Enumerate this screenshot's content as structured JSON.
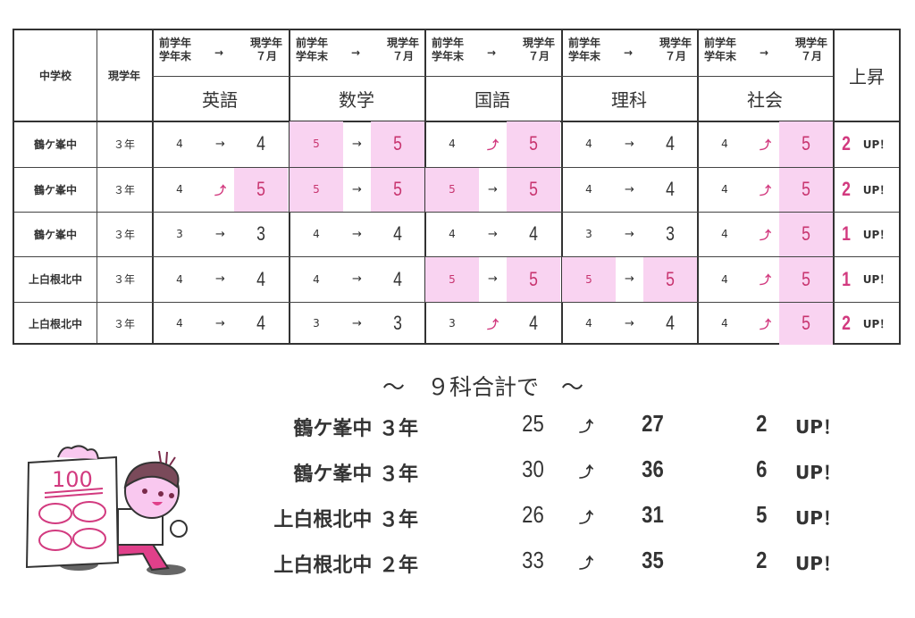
{
  "table": {
    "headers": {
      "school": "中学校",
      "grade": "現学年",
      "from_label": [
        "前学年",
        "学年末"
      ],
      "arrow": "→",
      "to_label": [
        "現学年",
        "７月"
      ],
      "increase": "上昇"
    },
    "subjects": [
      "英語",
      "数学",
      "国語",
      "理科",
      "社会"
    ],
    "rows": [
      {
        "school": "鶴ケ峯中",
        "grade": "３年",
        "scores": [
          [
            "4",
            "same",
            "4"
          ],
          [
            "5",
            "same",
            "5"
          ],
          [
            "4",
            "up",
            "5"
          ],
          [
            "4",
            "same",
            "4"
          ],
          [
            "4",
            "up",
            "5"
          ]
        ],
        "increase": "2",
        "up_label": "UP！"
      },
      {
        "school": "鶴ケ峯中",
        "grade": "３年",
        "scores": [
          [
            "4",
            "up",
            "5"
          ],
          [
            "5",
            "same",
            "5"
          ],
          [
            "5",
            "same",
            "5"
          ],
          [
            "4",
            "same",
            "4"
          ],
          [
            "4",
            "up",
            "5"
          ]
        ],
        "increase": "2",
        "up_label": "UP！"
      },
      {
        "school": "鶴ケ峯中",
        "grade": "３年",
        "scores": [
          [
            "3",
            "same",
            "3"
          ],
          [
            "4",
            "same",
            "4"
          ],
          [
            "4",
            "same",
            "4"
          ],
          [
            "3",
            "same",
            "3"
          ],
          [
            "4",
            "up",
            "5"
          ]
        ],
        "increase": "1",
        "up_label": "UP！"
      },
      {
        "school": "上白根北中",
        "grade": "３年",
        "scores": [
          [
            "4",
            "same",
            "4"
          ],
          [
            "4",
            "same",
            "4"
          ],
          [
            "5",
            "same",
            "5"
          ],
          [
            "5",
            "same",
            "5"
          ],
          [
            "4",
            "up",
            "5"
          ]
        ],
        "increase": "1",
        "up_label": "UP！"
      },
      {
        "school": "上白根北中",
        "grade": "３年",
        "scores": [
          [
            "4",
            "same",
            "4"
          ],
          [
            "3",
            "same",
            "3"
          ],
          [
            "3",
            "up",
            "4"
          ],
          [
            "4",
            "same",
            "4"
          ],
          [
            "4",
            "up",
            "5"
          ]
        ],
        "increase": "2",
        "up_label": "UP！"
      }
    ]
  },
  "arrows": {
    "same": "→",
    "up": "⤴"
  },
  "colors": {
    "highlight": "#f9d3f1",
    "accent": "#d23a7f",
    "text": "#333333"
  },
  "summary": {
    "title": "～　９科合計で　～",
    "rows": [
      {
        "label": "鶴ケ峯中 ３年",
        "from": "25",
        "to": "27",
        "increase": "2",
        "up_label": "UP！"
      },
      {
        "label": "鶴ケ峯中 ３年",
        "from": "30",
        "to": "36",
        "increase": "6",
        "up_label": "UP！"
      },
      {
        "label": "上白根北中 ３年",
        "from": "26",
        "to": "31",
        "increase": "5",
        "up_label": "UP！"
      },
      {
        "label": "上白根北中 ２年",
        "from": "33",
        "to": "35",
        "increase": "2",
        "up_label": "UP！"
      }
    ]
  },
  "illustration": {
    "paper_text": "100"
  }
}
